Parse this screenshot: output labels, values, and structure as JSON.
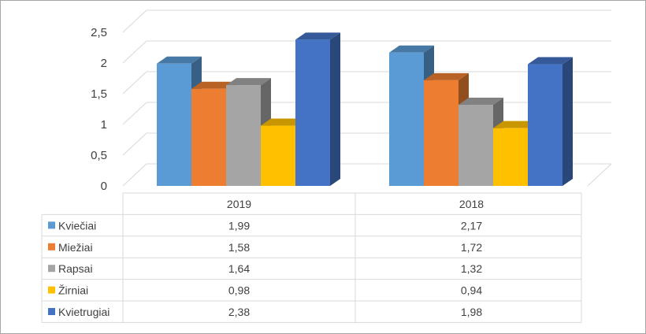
{
  "chart_data": {
    "type": "bar",
    "title": "",
    "xlabel": "",
    "ylabel": "",
    "categories": [
      "2019",
      "2018"
    ],
    "series": [
      {
        "name": "Kviečiai",
        "values": [
          1.99,
          2.17
        ],
        "color": "#5b9bd5",
        "value_labels": [
          "1,99",
          "2,17"
        ]
      },
      {
        "name": "Miežiai",
        "values": [
          1.58,
          1.72
        ],
        "color": "#ed7d31",
        "value_labels": [
          "1,58",
          "1,72"
        ]
      },
      {
        "name": "Rapsai",
        "values": [
          1.64,
          1.32
        ],
        "color": "#a5a5a5",
        "value_labels": [
          "1,64",
          "1,32"
        ]
      },
      {
        "name": "Žirniai",
        "values": [
          0.98,
          0.94
        ],
        "color": "#ffc000",
        "value_labels": [
          "0,98",
          "0,94"
        ]
      },
      {
        "name": "Kvietrugiai",
        "values": [
          2.38,
          1.98
        ],
        "color": "#4472c4",
        "value_labels": [
          "2,38",
          "1,98"
        ]
      }
    ],
    "ylim": [
      0,
      2.5
    ],
    "yticks": [
      0,
      0.5,
      1,
      1.5,
      2,
      2.5
    ],
    "ytick_labels": [
      "0",
      "0,5",
      "1",
      "1,5",
      "2",
      "2,5"
    ],
    "grid": true,
    "legend": "data-table",
    "style": "3d-clustered-column"
  }
}
